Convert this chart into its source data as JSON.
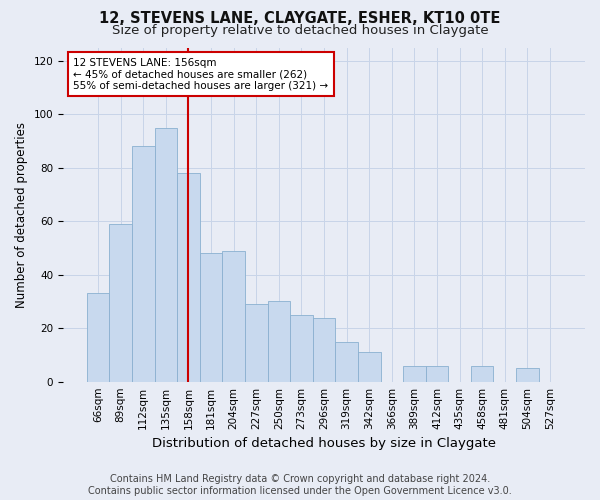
{
  "title1": "12, STEVENS LANE, CLAYGATE, ESHER, KT10 0TE",
  "title2": "Size of property relative to detached houses in Claygate",
  "xlabel": "Distribution of detached houses by size in Claygate",
  "ylabel": "Number of detached properties",
  "bar_labels": [
    "66sqm",
    "89sqm",
    "112sqm",
    "135sqm",
    "158sqm",
    "181sqm",
    "204sqm",
    "227sqm",
    "250sqm",
    "273sqm",
    "296sqm",
    "319sqm",
    "342sqm",
    "366sqm",
    "389sqm",
    "412sqm",
    "435sqm",
    "458sqm",
    "481sqm",
    "504sqm",
    "527sqm"
  ],
  "bar_values": [
    33,
    59,
    88,
    95,
    78,
    48,
    49,
    29,
    30,
    25,
    24,
    15,
    11,
    0,
    6,
    6,
    0,
    6,
    0,
    5,
    0
  ],
  "bar_color": "#c8d9ee",
  "bar_edge_color": "#8ab0d0",
  "vline_x": 4,
  "vline_color": "#cc0000",
  "annotation_title": "12 STEVENS LANE: 156sqm",
  "annotation_line1": "← 45% of detached houses are smaller (262)",
  "annotation_line2": "55% of semi-detached houses are larger (321) →",
  "annotation_box_color": "#cc0000",
  "ylim": [
    0,
    125
  ],
  "yticks": [
    0,
    20,
    40,
    60,
    80,
    100,
    120
  ],
  "grid_color": "#c8d4e8",
  "bg_color": "#e8ecf5",
  "plot_bg_color": "#e8ecf5",
  "footer1": "Contains HM Land Registry data © Crown copyright and database right 2024.",
  "footer2": "Contains public sector information licensed under the Open Government Licence v3.0.",
  "title1_fontsize": 10.5,
  "title2_fontsize": 9.5,
  "ylabel_fontsize": 8.5,
  "xlabel_fontsize": 9.5,
  "tick_fontsize": 7.5,
  "footer_fontsize": 7.0,
  "annotation_fontsize": 7.5
}
